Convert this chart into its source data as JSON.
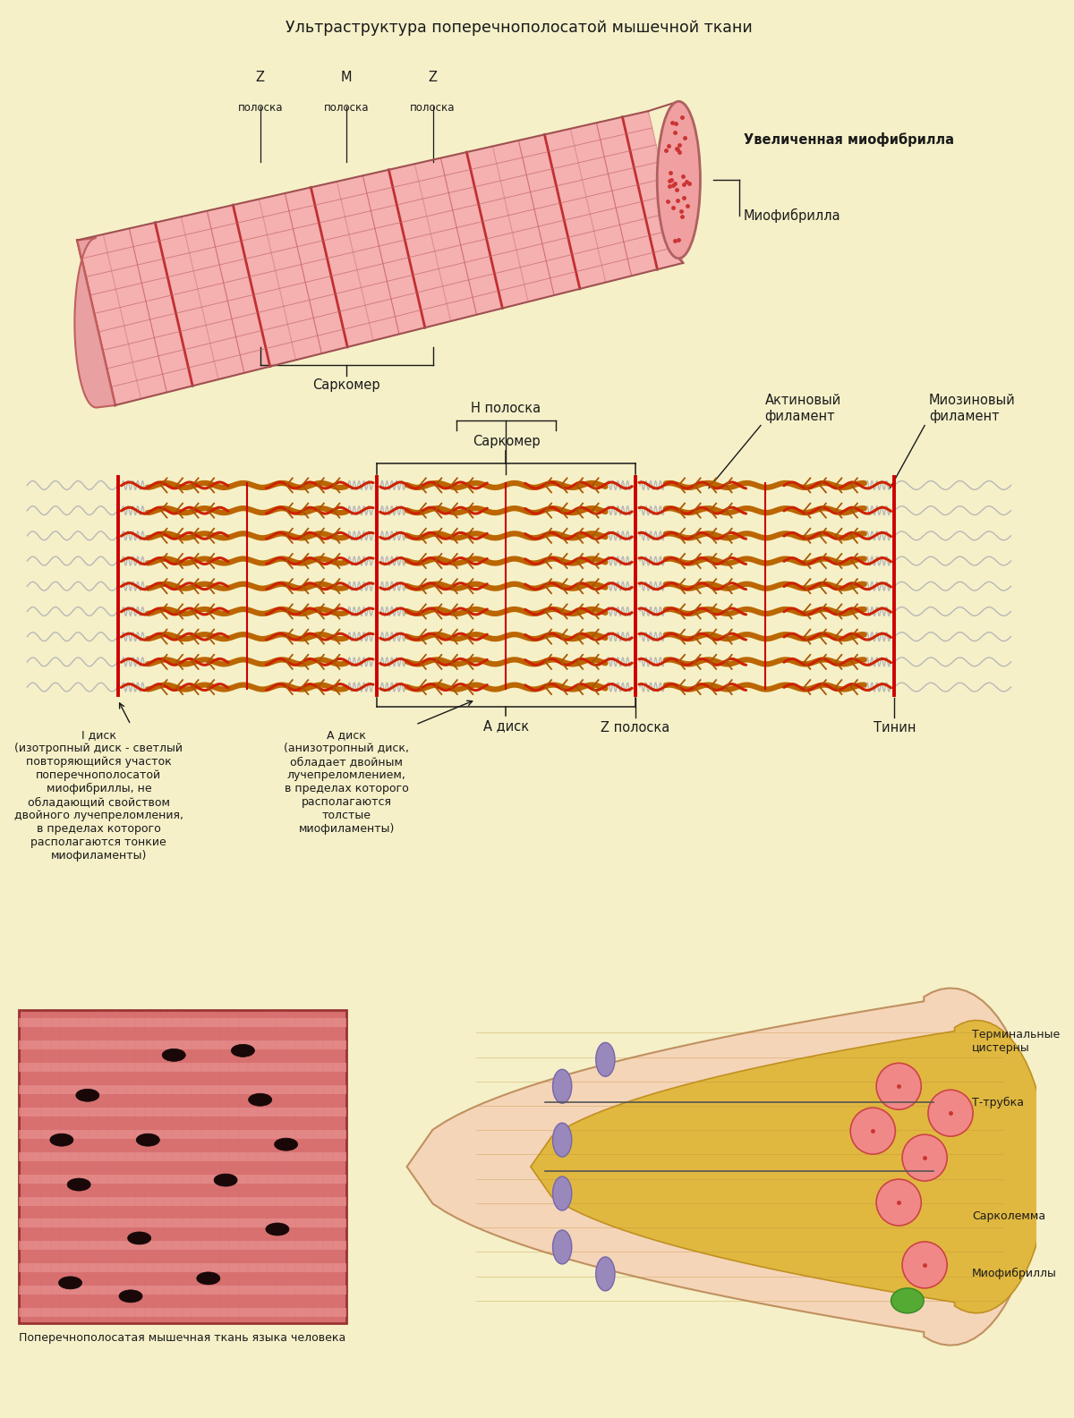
{
  "bg_color": "#f5f0c8",
  "title": "Ультраструктура поперечнополосатой мышечной ткани",
  "title_fontsize": 12.5,
  "label_fontsize": 10.5,
  "small_fontsize": 9,
  "text_color": "#1a1a1a",
  "increased_myofibril_label": "Увеличенная миофибрилла",
  "myofibril_label": "Миофибрилла",
  "sarcomere_label": "Саркомер",
  "sarcomere2_label": "Саркомер",
  "h_band_label": "Н полоска",
  "actin_label": "Актиновый\nфиламент",
  "myosin_label": "Миозиновый\nфиламент",
  "a_disk_label": "А диск",
  "z_band_label": "Z полоска",
  "titin_label": "Тинин",
  "i_disk_label": "I диск\n(изотропный диск - светлый\nповторяющийся участок\nпоперечнополосатой\nмиофибриллы, не\nобладающий свойством\nдвойного лучепреломления,\nв пределах которого\nрасполагаются тонкие\nмиофиламенты)",
  "a_disk_desc": "А диск\n(анизотропный диск,\nобладает двойным\nлучепреломлением,\nв пределах которого\nрасполагаются\nтолстые\nмиофиламенты)",
  "t_tube_label": "Т-трубка",
  "terminal_cisternae_label": "Терминальные\nцистерны",
  "sarcolemma_label": "Сарколемма",
  "myofibrils_label": "Миофибриллы",
  "photo_caption": "Поперечнополосатая мышечная ткань языка человека"
}
